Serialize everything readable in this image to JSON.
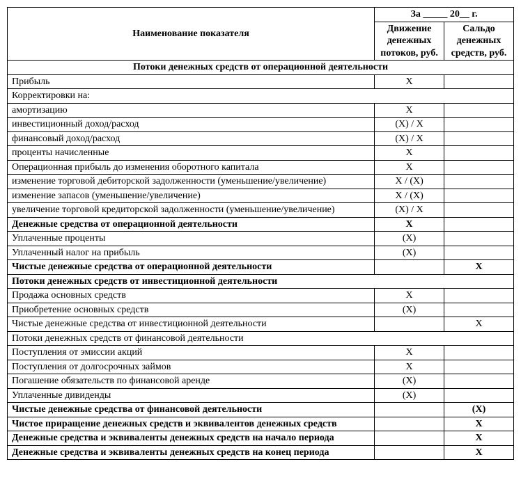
{
  "header": {
    "period_cell": "За _____ 20__ г.",
    "col_name": "Наименование показателя",
    "col_flow": "Движение денежных потоков, руб.",
    "col_balance": "Сальдо денежных средств, руб."
  },
  "sections": {
    "op": "Потоки денежных средств от операционной деятельности",
    "inv": "Потоки денежных средств от инвестиционной деятельности",
    "fin": "Потоки денежных средств от финансовой деятельности"
  },
  "rows": {
    "r1": {
      "n": "Прибыль",
      "v2": "Х",
      "v3": ""
    },
    "r2": {
      "n": "Корректировки на:",
      "v2": "",
      "v3": ""
    },
    "r3": {
      "n": "амортизацию",
      "v2": "Х",
      "v3": ""
    },
    "r4": {
      "n": "инвестиционный доход/расход",
      "v2": "(Х) / Х",
      "v3": ""
    },
    "r5": {
      "n": "финансовый доход/расход",
      "v2": "(Х) / Х",
      "v3": ""
    },
    "r6": {
      "n": "проценты начисленные",
      "v2": "Х",
      "v3": ""
    },
    "r7": {
      "n": "Операционная прибыль до изменения оборотного капитала",
      "v2": "Х",
      "v3": ""
    },
    "r8": {
      "n": "изменение торговой дебиторской задолженности (уменьшение/увеличе­ние)",
      "v2": "Х / (Х)",
      "v3": ""
    },
    "r9": {
      "n": "изменение запасов (уменьшение/увеличение)",
      "v2": "Х / (Х)",
      "v3": ""
    },
    "r10": {
      "n": "увеличение торговой кредиторской задолженности (уменьшение/увеличение)",
      "v2": "(Х) / Х",
      "v3": ""
    },
    "r11": {
      "n": "Денежные средства от операционной деятельности",
      "v2": "Х",
      "v3": ""
    },
    "r12": {
      "n": "Уплаченные проценты",
      "v2": "(Х)",
      "v3": ""
    },
    "r13": {
      "n": "Уплаченный налог на прибыль",
      "v2": "(Х)",
      "v3": ""
    },
    "r14": {
      "n": "Чистые денежные средства от операционной деятельности",
      "v2": "",
      "v3": "Х"
    },
    "r15": {
      "n": "Продажа основных средств",
      "v2": "Х",
      "v3": ""
    },
    "r16": {
      "n": "Приобретение основных средств",
      "v2": "(Х)",
      "v3": ""
    },
    "r17": {
      "n": "Чистые денежные средства от инвестиционной деятельности",
      "v2": "",
      "v3": "Х"
    },
    "r18": {
      "n": "Поступления от эмиссии акций",
      "v2": "Х",
      "v3": ""
    },
    "r19": {
      "n": "Поступления от долгосрочных займов",
      "v2": "Х",
      "v3": ""
    },
    "r20": {
      "n": "Погашение обязательств по финансовой аренде",
      "v2": "(Х)",
      "v3": ""
    },
    "r21": {
      "n": "Уплаченные дивиденды",
      "v2": "(Х)",
      "v3": ""
    },
    "r22": {
      "n": "Чистые денежные средства от финансовой деятельности",
      "v2": "",
      "v3": "(Х)"
    },
    "r23": {
      "n": "Чистое приращение денежных средств и эквивалентов денежных средств",
      "v2": "",
      "v3": "Х"
    },
    "r24": {
      "n": "Денежные средства и эквиваленты денежных средств на начало периода",
      "v2": "",
      "v3": "Х"
    },
    "r25": {
      "n": "Денежные средства и эквиваленты денежных средств на конец периода",
      "v2": "",
      "v3": "Х"
    }
  }
}
